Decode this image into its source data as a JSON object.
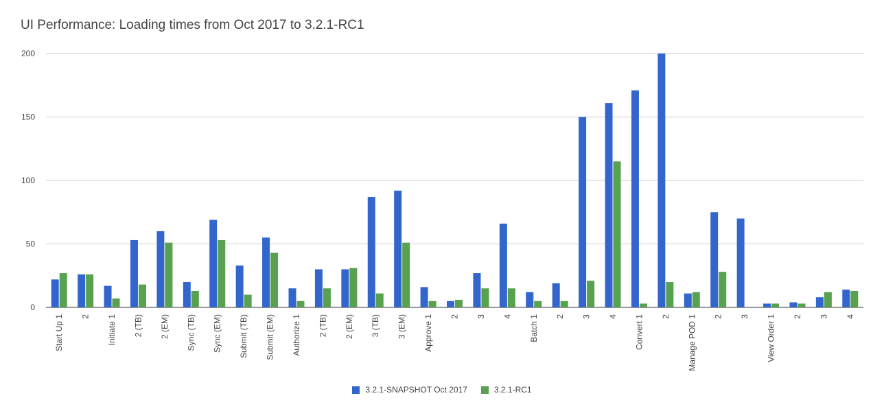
{
  "chart_data": {
    "type": "bar",
    "title": "UI Performance: Loading times from Oct 2017 to 3.2.1-RC1",
    "xlabel": "",
    "ylabel": "",
    "ylim": [
      0,
      200
    ],
    "yticks": [
      0,
      50,
      100,
      150,
      200
    ],
    "grid": true,
    "legend_position": "bottom",
    "categories": [
      "Start Up 1",
      "2",
      "Initiate 1",
      "2 (TB)",
      "2 (EM)",
      "Sync (TB)",
      "Sync (EM)",
      "Submit (TB)",
      "Submit (EM)",
      "Authorize 1",
      "2 (TB)",
      "2 (EM)",
      "3 (TB)",
      "3 (EM)",
      "Approve 1",
      "2",
      "3",
      "4",
      "Batch 1",
      "2",
      "3",
      "4",
      "Convert 1",
      "2",
      "Manage POD 1",
      "2",
      "3",
      "View Order 1",
      "2",
      "3",
      "4"
    ],
    "series": [
      {
        "name": "3.2.1-SNAPSHOT Oct 2017",
        "color": "#3366cc",
        "values": [
          22,
          26,
          17,
          53,
          60,
          20,
          69,
          33,
          55,
          15,
          30,
          30,
          87,
          92,
          16,
          5,
          27,
          66,
          12,
          19,
          150,
          161,
          171,
          200,
          11,
          75,
          70,
          3,
          4,
          8,
          14
        ]
      },
      {
        "name": "3.2.1-RC1",
        "color": "#58a14e",
        "values": [
          27,
          26,
          7,
          18,
          51,
          13,
          53,
          10,
          43,
          5,
          15,
          31,
          11,
          51,
          5,
          6,
          15,
          15,
          5,
          5,
          21,
          115,
          3,
          20,
          12,
          28,
          0,
          3,
          3,
          12,
          13
        ]
      }
    ]
  }
}
